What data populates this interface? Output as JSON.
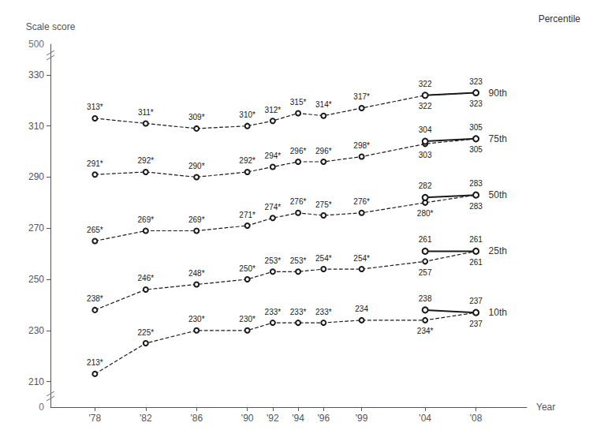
{
  "chart_data": {
    "type": "line",
    "xlabel": "Year",
    "ylabel": "Scale score",
    "annotations": [
      "Percentile",
      "500",
      "0"
    ],
    "x": [
      1978,
      1982,
      1986,
      1990,
      1992,
      1994,
      1996,
      1999,
      2004,
      2008
    ],
    "xlim": [
      1974.5,
      2012
    ],
    "xticks": [
      {
        "value": 1978,
        "label": "'78"
      },
      {
        "value": 1982,
        "label": "'82"
      },
      {
        "value": 1986,
        "label": "'86"
      },
      {
        "value": 1990,
        "label": "'90"
      },
      {
        "value": 1992,
        "label": "'92"
      },
      {
        "value": 1994,
        "label": "'94"
      },
      {
        "value": 1996,
        "label": "'96"
      },
      {
        "value": 1999,
        "label": "'99"
      },
      {
        "value": 2004,
        "label": "'04"
      },
      {
        "value": 2008,
        "label": "'08"
      }
    ],
    "ylim": [
      200,
      342
    ],
    "yticks": [
      210,
      230,
      250,
      270,
      290,
      310,
      330
    ],
    "grid": false,
    "data_labels": true,
    "marker": "circle",
    "color": "#1a1a1a",
    "series": [
      {
        "name": "90th",
        "line_style": "dashed",
        "values": [
          313,
          311,
          309,
          310,
          312,
          315,
          314,
          317,
          322,
          323
        ],
        "value_labels": [
          "313*",
          "311*",
          "309*",
          "310*",
          "312*",
          "315*",
          "314*",
          "317*",
          "322",
          "323"
        ]
      },
      {
        "line_style": "solid",
        "x": [
          2004,
          2008
        ],
        "values": [
          322,
          323
        ]
      },
      {
        "name": "75th",
        "line_style": "dashed",
        "values": [
          291,
          292,
          290,
          292,
          294,
          296,
          296,
          298,
          303,
          305
        ],
        "value_labels": [
          "291*",
          "292*",
          "290*",
          "292*",
          "294*",
          "296*",
          "296*",
          "298*",
          "303",
          "305"
        ]
      },
      {
        "line_style": "solid",
        "x": [
          2004,
          2008
        ],
        "values": [
          304,
          305
        ]
      },
      {
        "name": "50th",
        "line_style": "dashed",
        "values": [
          265,
          269,
          269,
          271,
          274,
          276,
          275,
          276,
          280,
          283
        ],
        "value_labels": [
          "265*",
          "269*",
          "269*",
          "271*",
          "274*",
          "276*",
          "275*",
          "276*",
          "280*",
          "283"
        ]
      },
      {
        "line_style": "solid",
        "x": [
          2004,
          2008
        ],
        "values": [
          282,
          283
        ]
      },
      {
        "name": "25th",
        "line_style": "dashed",
        "values": [
          238,
          246,
          248,
          250,
          253,
          253,
          254,
          254,
          257,
          261
        ],
        "value_labels": [
          "238*",
          "246*",
          "248*",
          "250*",
          "253*",
          "253*",
          "254*",
          "254*",
          "257",
          "261"
        ]
      },
      {
        "line_style": "solid",
        "x": [
          2004,
          2008
        ],
        "values": [
          261,
          261
        ]
      },
      {
        "name": "10th",
        "line_style": "dashed",
        "values": [
          213,
          225,
          230,
          230,
          233,
          233,
          233,
          234,
          234,
          237
        ],
        "value_labels": [
          "213*",
          "225*",
          "230*",
          "230*",
          "233*",
          "233*",
          "233*",
          "234",
          "234*",
          "237"
        ]
      },
      {
        "line_style": "solid",
        "x": [
          2004,
          2008
        ],
        "values": [
          238,
          237
        ]
      }
    ]
  }
}
